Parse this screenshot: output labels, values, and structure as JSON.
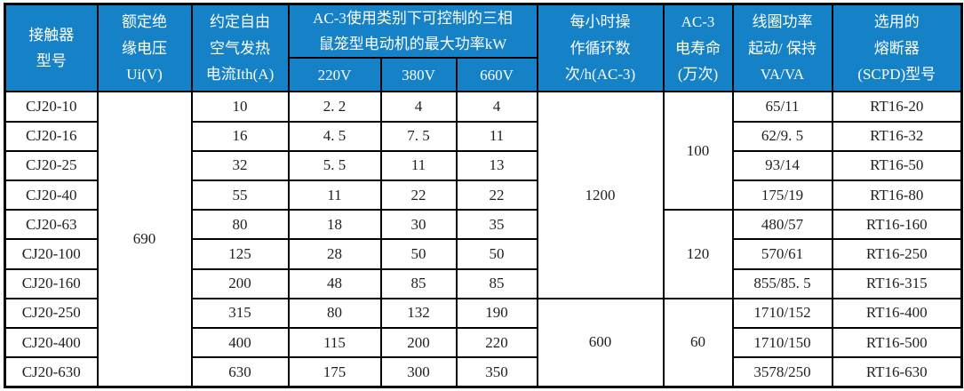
{
  "accent_color": "#1581c6",
  "border_color": "#000000",
  "header": {
    "model": "接触器\n型号",
    "insulation_voltage": "额定绝\n缘电压\nUi(V)",
    "thermal_current": "约定自由\n空气发热\n电流Ith(A)",
    "ac3_max_power": "AC-3使用类别下可控制的三相\n鼠笼型电动机的最大功率kW",
    "v220": "220V",
    "v380": "380V",
    "v660": "660V",
    "cycles_per_hour": "每小时操\n作循环数\n次/h(AC-3)",
    "electrical_life": "AC-3\n电寿命\n(万次)",
    "coil_power": "线圈功率\n起动/ 保持\nVA/VA",
    "fuse_type": "选用的\n熔断器\n(SCPD)型号"
  },
  "merged": {
    "insulation_voltage_all": "690",
    "cycles_rows_1_7": "1200",
    "cycles_rows_8_10": "600",
    "life_rows_1_4": "100",
    "life_rows_5_7": "120",
    "life_rows_8_10": "60"
  },
  "rows": [
    {
      "model": "CJ20-10",
      "ith": "10",
      "p220": "2. 2",
      "p380": "4",
      "p660": "4",
      "coil": "65/11",
      "fuse": "RT16-20"
    },
    {
      "model": "CJ20-16",
      "ith": "16",
      "p220": "4. 5",
      "p380": "7. 5",
      "p660": "11",
      "coil": "62/9. 5",
      "fuse": "RT16-32"
    },
    {
      "model": "CJ20-25",
      "ith": "32",
      "p220": "5. 5",
      "p380": "11",
      "p660": "13",
      "coil": "93/14",
      "fuse": "RT16-50"
    },
    {
      "model": "CJ20-40",
      "ith": "55",
      "p220": "11",
      "p380": "22",
      "p660": "22",
      "coil": "175/19",
      "fuse": "RT16-80"
    },
    {
      "model": "CJ20-63",
      "ith": "80",
      "p220": "18",
      "p380": "30",
      "p660": "35",
      "coil": "480/57",
      "fuse": "RT16-160"
    },
    {
      "model": "CJ20-100",
      "ith": "125",
      "p220": "28",
      "p380": "50",
      "p660": "50",
      "coil": "570/61",
      "fuse": "RT16-250"
    },
    {
      "model": "CJ20-160",
      "ith": "200",
      "p220": "48",
      "p380": "85",
      "p660": "85",
      "coil": "855/85. 5",
      "fuse": "RT16-315"
    },
    {
      "model": "CJ20-250",
      "ith": "315",
      "p220": "80",
      "p380": "132",
      "p660": "190",
      "coil": "1710/152",
      "fuse": "RT16-400"
    },
    {
      "model": "CJ20-400",
      "ith": "400",
      "p220": "115",
      "p380": "200",
      "p660": "220",
      "coil": "1710/150",
      "fuse": "RT16-500"
    },
    {
      "model": "CJ20-630",
      "ith": "630",
      "p220": "175",
      "p380": "300",
      "p660": "350",
      "coil": "3578/250",
      "fuse": "RT16-630"
    }
  ]
}
